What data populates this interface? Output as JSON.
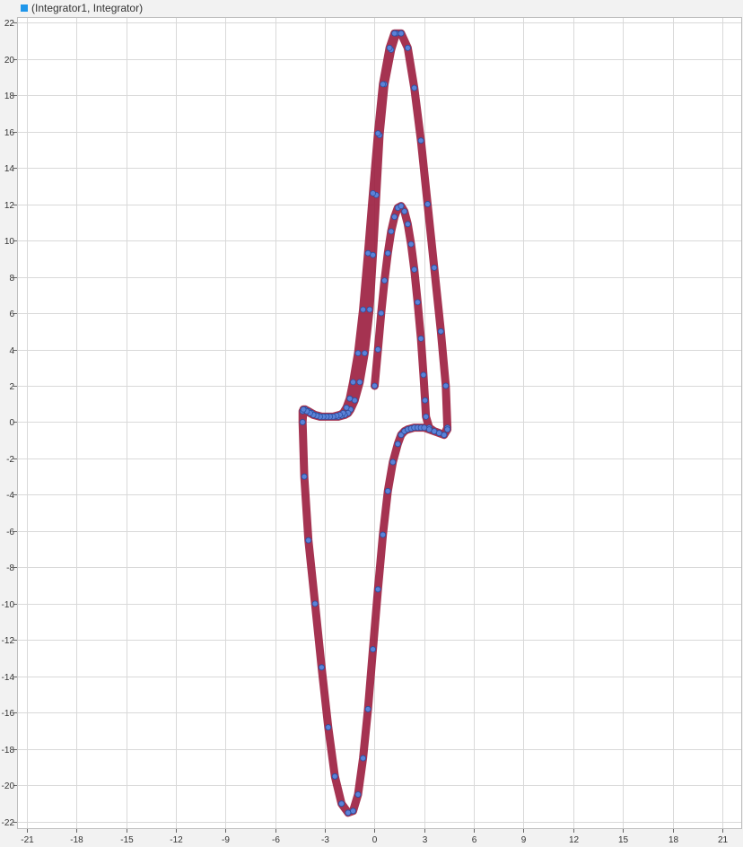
{
  "legend": {
    "label": "(Integrator1, Integrator)",
    "color": "#1f96ea"
  },
  "chart_data": {
    "type": "scatter",
    "title": "",
    "xlabel": "",
    "ylabel": "",
    "xlim": [
      -21.6,
      22.2
    ],
    "ylim": [
      -22.4,
      22.3
    ],
    "xticks": [
      -21,
      -18,
      -15,
      -12,
      -9,
      -6,
      -3,
      0,
      3,
      6,
      9,
      12,
      15,
      18,
      21
    ],
    "yticks": [
      22,
      20,
      18,
      16,
      14,
      12,
      10,
      8,
      6,
      4,
      2,
      0,
      -2,
      -4,
      -6,
      -8,
      -10,
      -12,
      -14,
      -16,
      -18,
      -20,
      -22
    ],
    "grid": true,
    "legend_position": "top-left",
    "colors": {
      "marker_fill": "#5b82d8",
      "marker_edge": "#2b4fa0",
      "trail": "#9b1d3e",
      "grid": "#d9d9d9",
      "background": "#ffffff"
    },
    "series": [
      {
        "name": "(Integrator1, Integrator)",
        "x": [
          0,
          0.2,
          0.4,
          0.6,
          0.8,
          1.0,
          1.2,
          1.4,
          1.6,
          1.8,
          2.0,
          2.2,
          2.4,
          2.6,
          2.8,
          2.95,
          3.05,
          3.1,
          3.3,
          3.6,
          3.9,
          4.2,
          4.4,
          4.3,
          4.0,
          3.6,
          3.2,
          2.8,
          2.4,
          2.0,
          1.6,
          1.3,
          1.0,
          0.6,
          0.3,
          0.1,
          -0.1,
          -0.3,
          -0.6,
          -0.9,
          -1.2,
          -1.45,
          -1.6,
          -1.8,
          -2.0,
          -2.2,
          -2.4,
          -2.6,
          -2.8,
          -3.0,
          -3.2,
          -3.4,
          -3.6,
          -3.8,
          -4.0,
          -4.2,
          -4.35,
          -4.35,
          -4.25,
          -4.0,
          -3.6,
          -3.2,
          -2.8,
          -2.4,
          -2.0,
          -1.6,
          -1.3,
          -1.0,
          -0.7,
          -0.4,
          -0.1,
          0.2,
          0.5,
          0.8,
          1.1,
          1.4,
          1.6,
          1.8,
          2.0,
          2.2,
          2.4,
          2.6,
          2.8,
          3.0,
          3.3,
          3.6,
          3.9,
          4.2,
          4.4,
          4.3,
          4.0,
          3.6,
          3.2,
          2.8,
          2.4,
          2.0,
          1.6,
          1.2,
          0.9,
          0.5,
          0.2,
          -0.1,
          -0.4,
          -0.7,
          -1.0,
          -1.3,
          -1.5,
          -1.7,
          -1.9,
          -2.1,
          -2.3,
          -2.5,
          -2.7,
          -2.9,
          -3.1,
          -3.3,
          -3.5,
          -3.7,
          -3.9,
          -4.1,
          -4.3,
          -4.35,
          -4.25,
          -4.0,
          -3.6,
          -3.2,
          -2.8,
          -2.4,
          -2.0,
          -1.6,
          -1.3,
          -1.0,
          -0.7,
          -0.4,
          -0.1,
          0.2,
          0.5,
          0.8,
          1.1,
          1.4,
          1.6,
          1.8,
          2.0,
          2.2,
          2.4,
          2.6,
          2.8,
          3.0
        ],
        "y": [
          2.0,
          4.0,
          6.0,
          7.8,
          9.3,
          10.5,
          11.3,
          11.8,
          11.9,
          11.6,
          10.9,
          9.8,
          8.4,
          6.6,
          4.6,
          2.6,
          1.2,
          0.3,
          -0.3,
          -0.5,
          -0.6,
          -0.7,
          -0.3,
          2.0,
          5.0,
          8.5,
          12.0,
          15.5,
          18.4,
          20.6,
          21.4,
          21.4,
          20.5,
          18.6,
          15.8,
          12.5,
          9.2,
          6.2,
          3.8,
          2.2,
          1.2,
          0.7,
          0.5,
          0.4,
          0.35,
          0.3,
          0.3,
          0.3,
          0.3,
          0.3,
          0.3,
          0.35,
          0.4,
          0.5,
          0.6,
          0.7,
          0.6,
          0.0,
          -3.0,
          -6.5,
          -10.0,
          -13.5,
          -16.8,
          -19.5,
          -21.0,
          -21.5,
          -21.4,
          -20.5,
          -18.5,
          -15.8,
          -12.5,
          -9.2,
          -6.2,
          -3.8,
          -2.2,
          -1.2,
          -0.7,
          -0.5,
          -0.4,
          -0.35,
          -0.3,
          -0.3,
          -0.3,
          -0.3,
          -0.4,
          -0.5,
          -0.6,
          -0.7,
          -0.4,
          2.0,
          5.0,
          8.5,
          12.0,
          15.5,
          18.4,
          20.6,
          21.4,
          21.4,
          20.6,
          18.6,
          15.9,
          12.6,
          9.3,
          6.2,
          3.8,
          2.2,
          1.3,
          0.8,
          0.5,
          0.4,
          0.35,
          0.3,
          0.3,
          0.3,
          0.3,
          0.3,
          0.35,
          0.4,
          0.5,
          0.6,
          0.7,
          0.0,
          -3.0,
          -6.5,
          -10.0,
          -13.5,
          -16.8,
          -19.5,
          -21.0,
          -21.5,
          -21.4,
          -20.5,
          -18.5,
          -15.8,
          -12.5,
          -9.2,
          -6.2,
          -3.8,
          -2.2,
          -1.2,
          -0.7,
          -0.5,
          -0.4,
          -0.35,
          -0.3,
          -0.3,
          -0.3,
          -0.3
        ]
      }
    ]
  }
}
